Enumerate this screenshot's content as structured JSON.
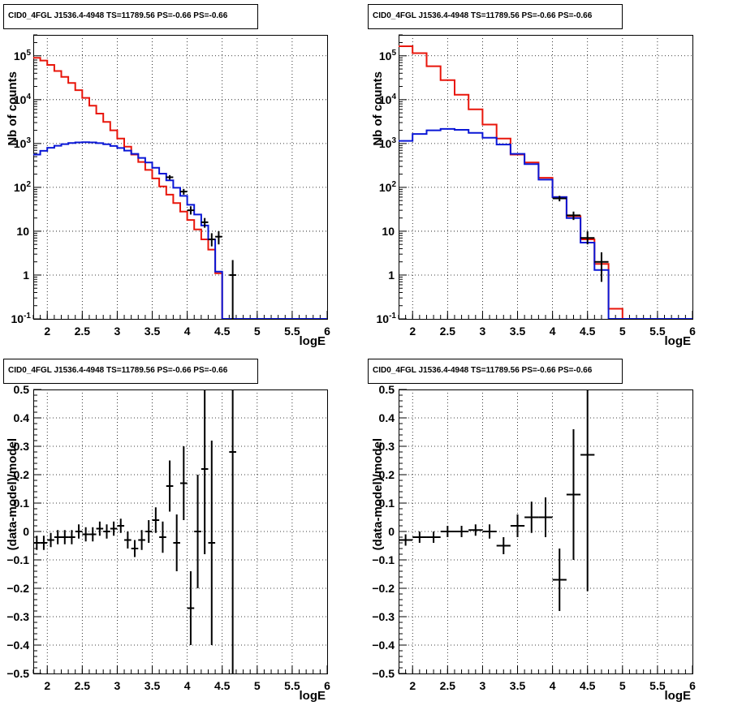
{
  "chart_data": [
    {
      "type": "line",
      "title": "CID0_4FGL J1536.4-4948 TS=11789.56 PS=-0.66 PS=-0.66",
      "xlabel": "logE",
      "ylabel": "Nb of counts",
      "yscale": "log",
      "xlim": [
        1.8,
        6.0
      ],
      "ylim": [
        0.1,
        300000
      ],
      "grid": true,
      "xticks": [
        "2",
        "2.5",
        "3",
        "3.5",
        "4",
        "4.5",
        "5",
        "5.5",
        "6"
      ],
      "yticks": [
        {
          "base": "10",
          "exp": "-1",
          "value": 0.1
        },
        {
          "base": "1",
          "exp": "",
          "value": 1
        },
        {
          "base": "10",
          "exp": "",
          "value": 10
        },
        {
          "base": "10",
          "exp": "2",
          "value": 100
        },
        {
          "base": "10",
          "exp": "3",
          "value": 1000
        },
        {
          "base": "10",
          "exp": "4",
          "value": 10000
        },
        {
          "base": "10",
          "exp": "5",
          "value": 100000
        }
      ],
      "bin_edges": [
        1.8,
        1.9,
        2.0,
        2.1,
        2.2,
        2.3,
        2.4,
        2.5,
        2.6,
        2.7,
        2.8,
        2.9,
        3.0,
        3.1,
        3.2,
        3.3,
        3.4,
        3.5,
        3.6,
        3.7,
        3.8,
        3.9,
        4.0,
        4.1,
        4.2,
        4.3,
        4.4,
        4.5,
        4.6,
        4.7,
        4.8,
        4.9,
        5.0,
        5.1,
        5.2,
        5.3,
        5.4,
        5.5,
        5.6,
        5.7,
        5.8,
        5.9,
        6.0
      ],
      "series": [
        {
          "color": "#e8160b",
          "values": [
            90000,
            78000,
            62000,
            45000,
            33000,
            24000,
            16500,
            11000,
            7300,
            4800,
            3100,
            2000,
            1300,
            850,
            560,
            380,
            250,
            160,
            105,
            68,
            44,
            28,
            18,
            11,
            6.5,
            3.8,
            1.1,
            0.1,
            0.1,
            0.1,
            0.1,
            0.1,
            0.1,
            0.1,
            0.1,
            0.1,
            0.1,
            0.1,
            0.1,
            0.1,
            0.1,
            0.1
          ]
        },
        {
          "color": "#0a17d6",
          "values": [
            560,
            680,
            800,
            890,
            970,
            1030,
            1060,
            1070,
            1060,
            1020,
            960,
            880,
            790,
            690,
            580,
            470,
            370,
            280,
            205,
            145,
            98,
            64,
            40,
            24,
            13.5,
            6.5,
            1.2,
            0.1,
            0.1,
            0.1,
            0.1,
            0.1,
            0.1,
            0.1,
            0.1,
            0.1,
            0.1,
            0.1,
            0.1,
            0.1,
            0.1,
            0.1
          ]
        }
      ],
      "data_points": [
        {
          "x": 3.75,
          "y": 170,
          "ylo": 150,
          "yhi": 190
        },
        {
          "x": 3.95,
          "y": 80,
          "ylo": 68,
          "yhi": 92
        },
        {
          "x": 4.05,
          "y": 30,
          "ylo": 24,
          "yhi": 37
        },
        {
          "x": 4.25,
          "y": 16,
          "ylo": 12,
          "yhi": 20
        },
        {
          "x": 4.35,
          "y": 6.5,
          "ylo": 4.5,
          "yhi": 9
        },
        {
          "x": 4.45,
          "y": 7.5,
          "ylo": 5,
          "yhi": 10
        },
        {
          "x": 4.65,
          "y": 1.0,
          "ylo": 0.1,
          "yhi": 2.2
        }
      ]
    },
    {
      "type": "line",
      "title": "CID0_4FGL J1536.4-4948 TS=11789.56 PS=-0.66 PS=-0.66",
      "xlabel": "logE",
      "ylabel": "Nb of counts",
      "yscale": "log",
      "xlim": [
        1.8,
        6.0
      ],
      "ylim": [
        0.1,
        300000
      ],
      "grid": true,
      "xticks": [
        "2",
        "2.5",
        "3",
        "3.5",
        "4",
        "4.5",
        "5",
        "5.5",
        "6"
      ],
      "yticks": [
        {
          "base": "10",
          "exp": "-1",
          "value": 0.1
        },
        {
          "base": "1",
          "exp": "",
          "value": 1
        },
        {
          "base": "10",
          "exp": "",
          "value": 10
        },
        {
          "base": "10",
          "exp": "2",
          "value": 100
        },
        {
          "base": "10",
          "exp": "3",
          "value": 1000
        },
        {
          "base": "10",
          "exp": "4",
          "value": 10000
        },
        {
          "base": "10",
          "exp": "5",
          "value": 100000
        }
      ],
      "bin_edges": [
        1.8,
        2.0,
        2.2,
        2.4,
        2.6,
        2.8,
        3.0,
        3.2,
        3.4,
        3.6,
        3.8,
        4.0,
        4.2,
        4.4,
        4.6,
        4.8,
        5.0,
        5.2,
        5.4,
        5.6,
        5.8,
        6.0
      ],
      "series": [
        {
          "color": "#e8160b",
          "values": [
            165000,
            115000,
            58000,
            28000,
            13000,
            6000,
            2700,
            1300,
            560,
            370,
            165,
            60,
            22,
            6.5,
            1.8,
            0.17,
            0.1,
            0.1,
            0.1,
            0.1,
            0.1
          ]
        },
        {
          "color": "#0a17d6",
          "values": [
            1150,
            1650,
            2000,
            2150,
            2050,
            1750,
            1350,
            950,
            580,
            340,
            150,
            60,
            20,
            5.5,
            1.3,
            0.1,
            0.1,
            0.1,
            0.1,
            0.1,
            0.1
          ]
        }
      ],
      "data_points": [
        {
          "x": 4.1,
          "y": 56,
          "ylo": 48,
          "yhi": 64
        },
        {
          "x": 4.3,
          "y": 23,
          "ylo": 18,
          "yhi": 28
        },
        {
          "x": 4.5,
          "y": 7,
          "ylo": 5,
          "yhi": 10
        },
        {
          "x": 4.7,
          "y": 2.0,
          "ylo": 0.7,
          "yhi": 3.3
        }
      ]
    },
    {
      "type": "scatter",
      "title": "CID0_4FGL J1536.4-4948 TS=11789.56 PS=-0.66 PS=-0.66",
      "xlabel": "logE",
      "ylabel": "(data-model)/model",
      "xlim": [
        1.8,
        6.0
      ],
      "ylim": [
        -0.5,
        0.5
      ],
      "grid": true,
      "xticks": [
        "2",
        "2.5",
        "3",
        "3.5",
        "4",
        "4.5",
        "5",
        "5.5",
        "6"
      ],
      "yticks": [
        "−0.5",
        "−0.4",
        "−0.3",
        "−0.2",
        "−0.1",
        "0",
        "0.1",
        "0.2",
        "0.3",
        "0.4",
        "0.5"
      ],
      "ytick_values": [
        -0.5,
        -0.4,
        -0.3,
        -0.2,
        -0.1,
        0,
        0.1,
        0.2,
        0.3,
        0.4,
        0.5
      ],
      "xerr": 0.05,
      "points": [
        {
          "x": 1.85,
          "y": -0.04,
          "err": 0.025
        },
        {
          "x": 1.95,
          "y": -0.04,
          "err": 0.025
        },
        {
          "x": 2.05,
          "y": -0.03,
          "err": 0.025
        },
        {
          "x": 2.15,
          "y": -0.02,
          "err": 0.025
        },
        {
          "x": 2.25,
          "y": -0.02,
          "err": 0.025
        },
        {
          "x": 2.35,
          "y": -0.02,
          "err": 0.025
        },
        {
          "x": 2.45,
          "y": 0.0,
          "err": 0.025
        },
        {
          "x": 2.55,
          "y": -0.01,
          "err": 0.025
        },
        {
          "x": 2.65,
          "y": -0.01,
          "err": 0.025
        },
        {
          "x": 2.75,
          "y": 0.01,
          "err": 0.025
        },
        {
          "x": 2.85,
          "y": 0.0,
          "err": 0.025
        },
        {
          "x": 2.95,
          "y": 0.01,
          "err": 0.025
        },
        {
          "x": 3.05,
          "y": 0.02,
          "err": 0.025
        },
        {
          "x": 3.15,
          "y": -0.03,
          "err": 0.03
        },
        {
          "x": 3.25,
          "y": -0.06,
          "err": 0.03
        },
        {
          "x": 3.35,
          "y": -0.03,
          "err": 0.035
        },
        {
          "x": 3.45,
          "y": 0.0,
          "err": 0.04
        },
        {
          "x": 3.55,
          "y": 0.04,
          "err": 0.045
        },
        {
          "x": 3.65,
          "y": -0.02,
          "err": 0.055
        },
        {
          "x": 3.75,
          "y": 0.16,
          "err": 0.09
        },
        {
          "x": 3.85,
          "y": -0.04,
          "err": 0.1
        },
        {
          "x": 3.95,
          "y": 0.17,
          "err": 0.13
        },
        {
          "x": 4.05,
          "y": -0.27,
          "err": 0.13
        },
        {
          "x": 4.15,
          "y": 0.0,
          "err": 0.2
        },
        {
          "x": 4.25,
          "y": 0.22,
          "err": 0.3
        },
        {
          "x": 4.35,
          "y": -0.04,
          "err": 0.36
        },
        {
          "x": 4.65,
          "y": 0.28,
          "err": 0.85
        }
      ]
    },
    {
      "type": "scatter",
      "title": "CID0_4FGL J1536.4-4948 TS=11789.56 PS=-0.66 PS=-0.66",
      "xlabel": "logE",
      "ylabel": "(data-model)/model",
      "xlim": [
        1.8,
        6.0
      ],
      "ylim": [
        -0.5,
        0.5
      ],
      "grid": true,
      "xticks": [
        "2",
        "2.5",
        "3",
        "3.5",
        "4",
        "4.5",
        "5",
        "5.5",
        "6"
      ],
      "yticks": [
        "−0.5",
        "−0.4",
        "−0.3",
        "−0.2",
        "−0.1",
        "0",
        "0.1",
        "0.2",
        "0.3",
        "0.4",
        "0.5"
      ],
      "ytick_values": [
        -0.5,
        -0.4,
        -0.3,
        -0.2,
        -0.1,
        0,
        0.1,
        0.2,
        0.3,
        0.4,
        0.5
      ],
      "xerr": 0.1,
      "points": [
        {
          "x": 1.9,
          "y": -0.03,
          "err": 0.02
        },
        {
          "x": 2.1,
          "y": -0.02,
          "err": 0.02
        },
        {
          "x": 2.3,
          "y": -0.02,
          "err": 0.02
        },
        {
          "x": 2.5,
          "y": 0.0,
          "err": 0.02
        },
        {
          "x": 2.7,
          "y": 0.0,
          "err": 0.02
        },
        {
          "x": 2.9,
          "y": 0.005,
          "err": 0.02
        },
        {
          "x": 3.1,
          "y": 0.0,
          "err": 0.025
        },
        {
          "x": 3.3,
          "y": -0.05,
          "err": 0.03
        },
        {
          "x": 3.5,
          "y": 0.02,
          "err": 0.04
        },
        {
          "x": 3.7,
          "y": 0.05,
          "err": 0.055
        },
        {
          "x": 3.9,
          "y": 0.05,
          "err": 0.07
        },
        {
          "x": 4.1,
          "y": -0.17,
          "err": 0.11
        },
        {
          "x": 4.3,
          "y": 0.13,
          "err": 0.23
        },
        {
          "x": 4.5,
          "y": 0.27,
          "err": 0.48
        }
      ]
    }
  ]
}
